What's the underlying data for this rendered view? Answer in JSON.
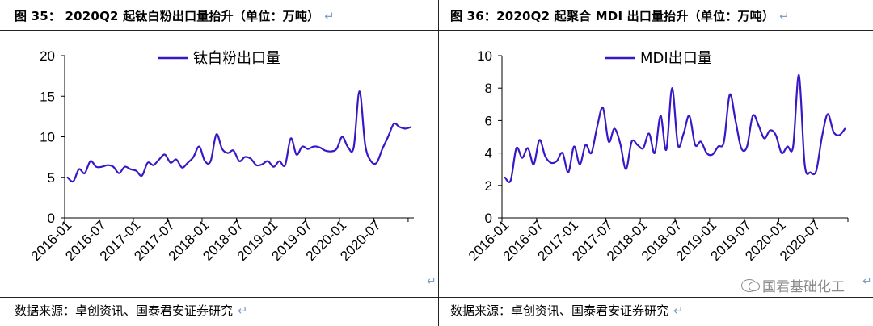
{
  "left": {
    "caption": "图 35： 2020Q2 起钛白粉出口量抬升（单位：万吨）",
    "source": "数据来源：卓创资讯、国泰君安证券研究",
    "return_mark": "↵"
  },
  "right": {
    "caption": "图 36：2020Q2 起聚合 MDI 出口量抬升（单位：万吨）",
    "source": "数据来源：卓创资讯、国泰君安证券研究",
    "return_mark": "↵",
    "watermark": "国君基础化工"
  },
  "colors": {
    "line": "#3a17c6",
    "axis": "#000000"
  },
  "chart_data": [
    {
      "type": "line",
      "ylim": [
        0,
        20
      ],
      "yticks": [
        0,
        5,
        10,
        15,
        20
      ],
      "xtick_labels": [
        "2016-01",
        "2016-07",
        "2017-01",
        "2017-07",
        "2018-01",
        "2018-07",
        "2019-01",
        "2019-07",
        "2020-01",
        "2020-07"
      ],
      "legend_position": "top-center",
      "series": [
        {
          "name": "钛白粉出口量",
          "values": [
            5.0,
            4.5,
            6.0,
            5.5,
            7.0,
            6.3,
            6.3,
            6.5,
            6.3,
            5.5,
            6.3,
            6.0,
            5.8,
            5.2,
            6.8,
            6.5,
            7.2,
            7.8,
            6.8,
            7.2,
            6.2,
            6.8,
            7.5,
            8.8,
            7.0,
            7.0,
            10.3,
            8.5,
            8.0,
            8.3,
            7.0,
            7.5,
            7.3,
            6.5,
            6.6,
            7.0,
            6.3,
            7.0,
            6.5,
            9.8,
            7.8,
            8.8,
            8.5,
            8.8,
            8.7,
            8.3,
            8.2,
            8.5,
            10.0,
            8.7,
            8.7,
            15.6,
            9.0,
            7.0,
            6.8,
            8.5,
            10.0,
            11.6,
            11.2,
            11.0,
            11.2
          ]
        }
      ]
    },
    {
      "type": "line",
      "ylim": [
        0,
        10
      ],
      "yticks": [
        0,
        2,
        4,
        6,
        8,
        10
      ],
      "xtick_labels": [
        "2016-01",
        "2016-07",
        "2017-01",
        "2017-07",
        "2018-01",
        "2018-07",
        "2019-01",
        "2019-07",
        "2020-01",
        "2020-07"
      ],
      "legend_position": "top-center",
      "series": [
        {
          "name": "MDI出口量",
          "values": [
            2.5,
            2.3,
            4.3,
            3.7,
            4.3,
            3.3,
            4.8,
            3.8,
            3.4,
            3.5,
            4.0,
            2.8,
            4.4,
            3.3,
            4.5,
            4.0,
            5.6,
            6.8,
            4.7,
            5.5,
            4.6,
            3.0,
            4.7,
            4.5,
            4.3,
            5.2,
            4.0,
            6.3,
            4.2,
            8.0,
            4.5,
            5.2,
            6.3,
            4.5,
            4.7,
            4.0,
            3.9,
            4.4,
            4.7,
            7.6,
            6.0,
            4.3,
            4.4,
            6.3,
            5.7,
            4.9,
            5.4,
            5.1,
            4.0,
            4.4,
            4.4,
            8.8,
            3.3,
            2.8,
            2.9,
            5.0,
            6.4,
            5.3,
            5.1,
            5.5
          ]
        }
      ]
    }
  ]
}
